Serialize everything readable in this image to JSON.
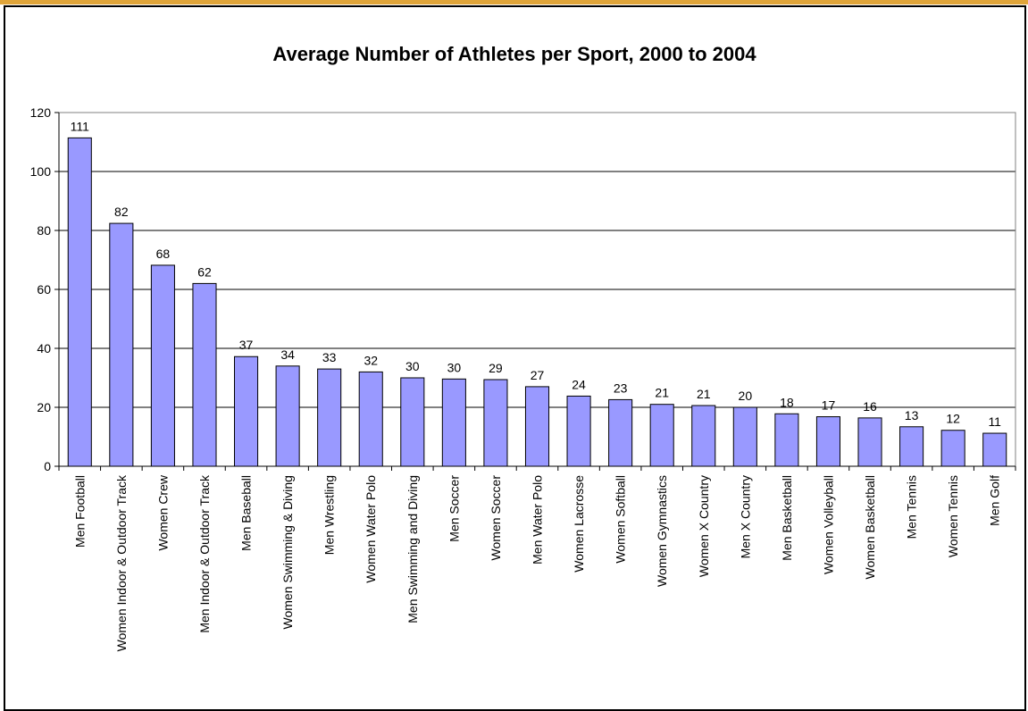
{
  "accent_colors": {
    "top_band": "#E0A53A",
    "bar_fill": "#9999FF",
    "bar_stroke": "#000000"
  },
  "chart_data": {
    "type": "bar",
    "title": "Average Number of Athletes per Sport, 2000 to 2004",
    "xlabel": "",
    "ylabel": "",
    "ylim": [
      0,
      120
    ],
    "yticks": [
      0,
      20,
      40,
      60,
      80,
      100,
      120
    ],
    "grid": true,
    "categories": [
      "Men Football",
      "Women Indoor & Outdoor Track",
      "Women Crew",
      "Men Indoor & Outdoor Track",
      "Men Baseball",
      "Women Swimming & Diving",
      "Men Wrestling",
      "Women Water Polo",
      "Men Swimming and Diving",
      "Men Soccer",
      "Women Soccer",
      "Men Water Polo",
      "Women Lacrosse",
      "Women Softball",
      "Women Gymnastics",
      "Women X Country",
      "Men X Country",
      "Men Basketball",
      "Women Volleyball",
      "Women Basketball",
      "Men Tennis",
      "Women Tennis",
      "Men Golf"
    ],
    "values": [
      111.4,
      82.4,
      68.2,
      62,
      37.2,
      34,
      33,
      32,
      30,
      29.6,
      29.4,
      27,
      23.8,
      22.6,
      21,
      20.6,
      20,
      17.8,
      16.8,
      16.4,
      13.4,
      12.2,
      11.2
    ],
    "data_labels": [
      "111",
      "82",
      "68",
      "62",
      "37",
      "34",
      "33",
      "32",
      "30",
      "30",
      "29",
      "27",
      "24",
      "23",
      "21",
      "21",
      "20",
      "18",
      "17",
      "16",
      "13",
      "12",
      "11"
    ]
  }
}
